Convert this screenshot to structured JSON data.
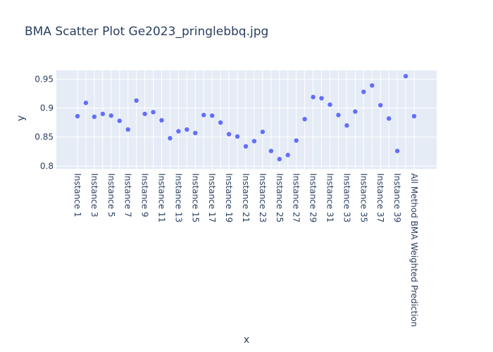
{
  "chart_data": {
    "type": "scatter",
    "title": "BMA Scatter Plot Ge2023_pringlebbq.jpg",
    "xlabel": "x",
    "ylabel": "y",
    "ylim": [
      0.795,
      0.965
    ],
    "yticks": [
      0.8,
      0.85,
      0.9,
      0.95
    ],
    "ytick_labels": [
      "0.8",
      "0.85",
      "0.9",
      "0.95"
    ],
    "grid": true,
    "legend": false,
    "colors": {
      "marker": "#636efa",
      "plot_bg": "#e5ecf6",
      "grid": "#ffffff",
      "text": "#2a3f5f"
    },
    "categories": [
      "Instance 1",
      "Instance 2",
      "Instance 3",
      "Instance 4",
      "Instance 5",
      "Instance 6",
      "Instance 7",
      "Instance 8",
      "Instance 9",
      "Instance 10",
      "Instance 11",
      "Instance 12",
      "Instance 13",
      "Instance 14",
      "Instance 15",
      "Instance 16",
      "Instance 17",
      "Instance 18",
      "Instance 19",
      "Instance 20",
      "Instance 21",
      "Instance 22",
      "Instance 23",
      "Instance 24",
      "Instance 25",
      "Instance 26",
      "Instance 27",
      "Instance 28",
      "Instance 29",
      "Instance 30",
      "Instance 31",
      "Instance 32",
      "Instance 33",
      "Instance 34",
      "Instance 35",
      "Instance 36",
      "Instance 37",
      "Instance 38",
      "Instance 39",
      "Instance 40",
      "All Method BMA Weighted Prediction"
    ],
    "tick_labels_shown": [
      "Instance 1",
      "Instance 3",
      "Instance 5",
      "Instance 7",
      "Instance 9",
      "Instance 11",
      "Instance 13",
      "Instance 15",
      "Instance 17",
      "Instance 19",
      "Instance 21",
      "Instance 23",
      "Instance 25",
      "Instance 27",
      "Instance 29",
      "Instance 31",
      "Instance 33",
      "Instance 35",
      "Instance 37",
      "Instance 39",
      "All Method BMA Weighted Prediction"
    ],
    "values": [
      0.886,
      0.909,
      0.885,
      0.89,
      0.887,
      0.878,
      0.863,
      0.913,
      0.89,
      0.893,
      0.879,
      0.848,
      0.86,
      0.863,
      0.857,
      0.888,
      0.887,
      0.875,
      0.855,
      0.851,
      0.834,
      0.843,
      0.859,
      0.826,
      0.812,
      0.819,
      0.844,
      0.881,
      0.919,
      0.917,
      0.906,
      0.888,
      0.87,
      0.894,
      0.928,
      0.939,
      0.905,
      0.882,
      0.826,
      0.955,
      0.886
    ]
  }
}
